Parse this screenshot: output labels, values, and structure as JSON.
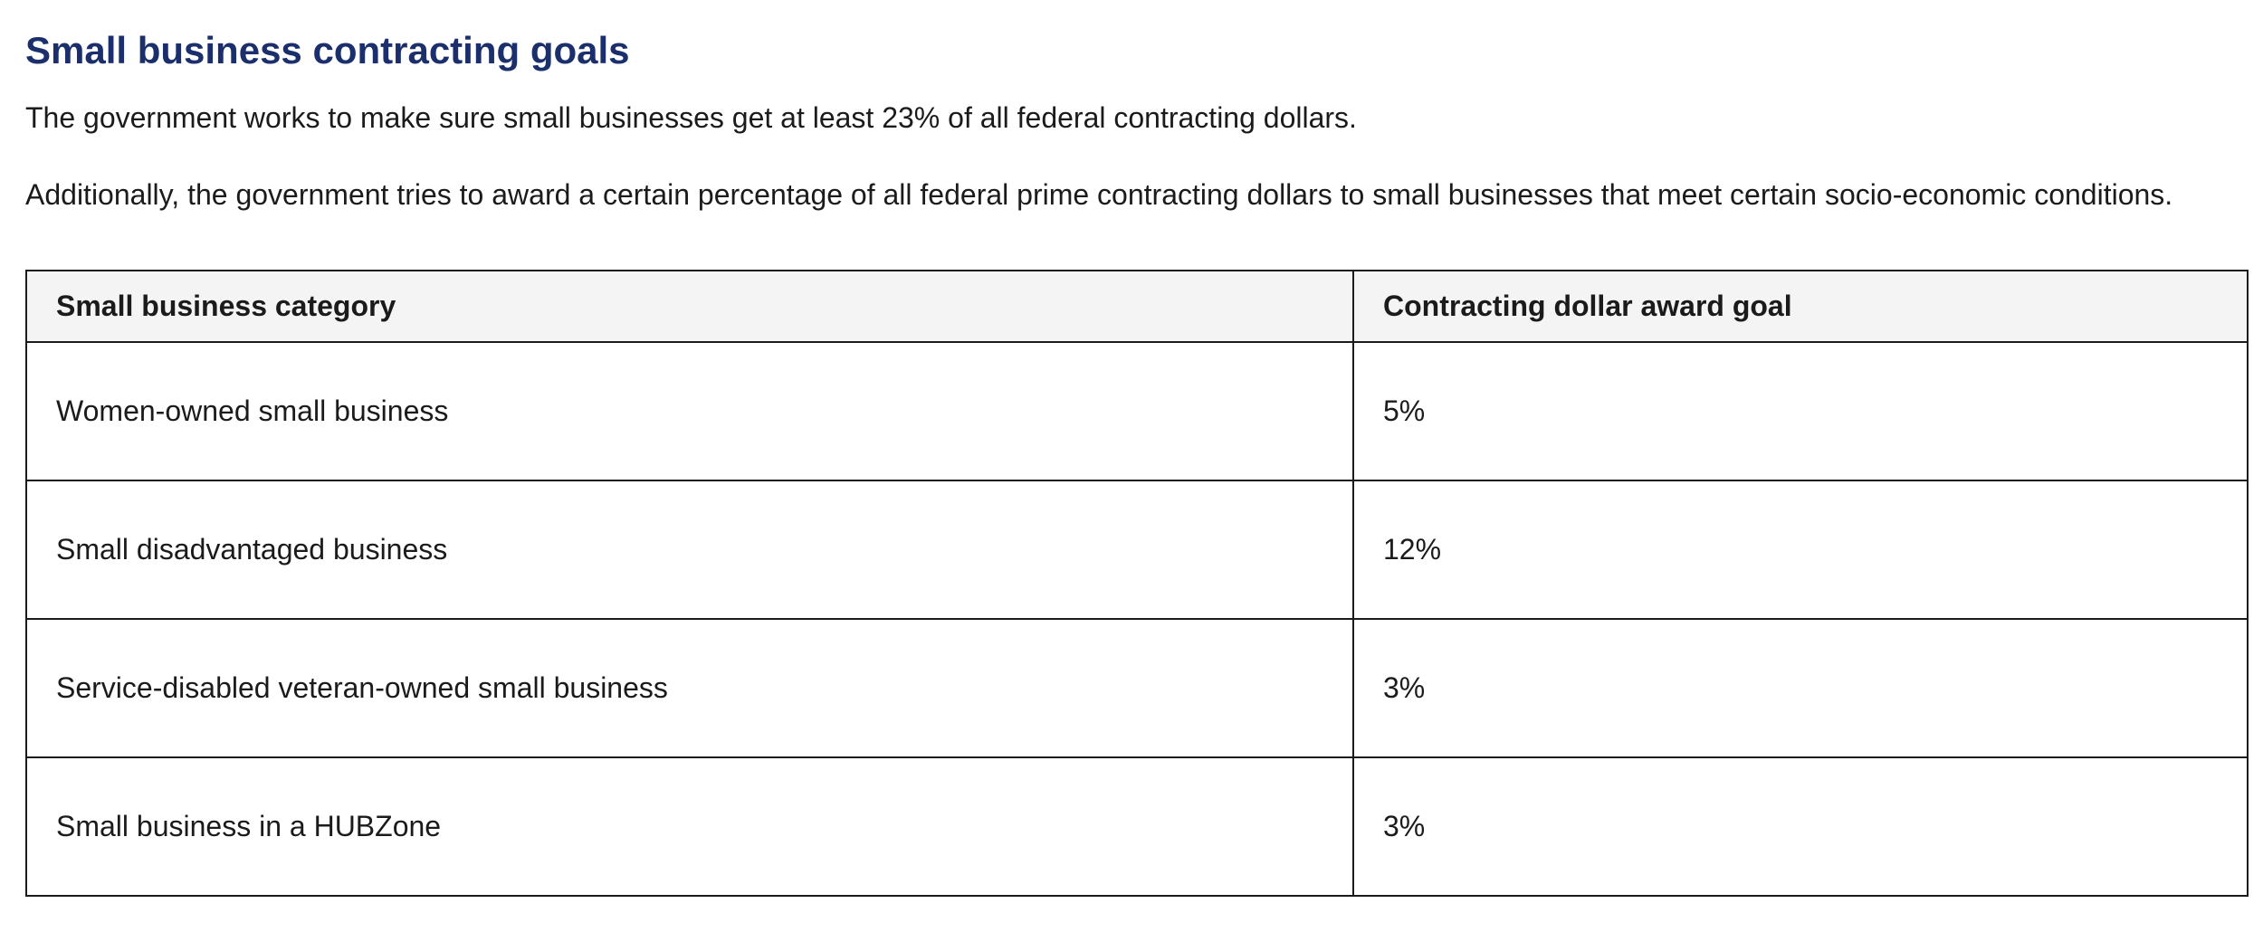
{
  "heading": "Small business contracting goals",
  "paragraphs": [
    "The government works to make sure small businesses get at least 23% of all federal contracting dollars.",
    "Additionally, the government tries to award a certain percentage of all federal prime contracting dollars to small businesses that meet certain socio-economic conditions."
  ],
  "table": {
    "headers": [
      "Small business category",
      "Contracting dollar award goal"
    ],
    "rows": [
      [
        "Women-owned small business",
        "5%"
      ],
      [
        "Small disadvantaged business",
        "12%"
      ],
      [
        "Service-disabled veteran-owned small business",
        "3%"
      ],
      [
        "Small business in a HUBZone",
        "3%"
      ]
    ]
  },
  "colors": {
    "heading": "#1a2f6b",
    "text": "#1b1b1b",
    "header_bg": "#f4f4f4",
    "border": "#1b1b1b"
  }
}
